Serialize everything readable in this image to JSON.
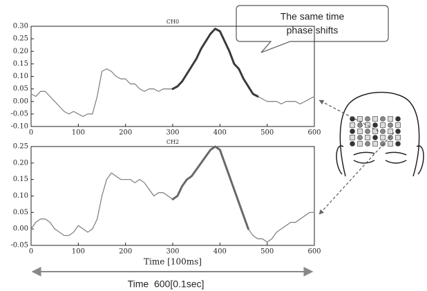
{
  "chart_data": [
    {
      "type": "line",
      "title": "CH0",
      "x": [
        0,
        10,
        20,
        30,
        40,
        50,
        60,
        70,
        80,
        90,
        100,
        110,
        120,
        130,
        140,
        150,
        160,
        170,
        180,
        190,
        200,
        210,
        220,
        230,
        240,
        250,
        260,
        270,
        280,
        290,
        300,
        310,
        320,
        330,
        340,
        350,
        360,
        370,
        380,
        390,
        400,
        410,
        420,
        430,
        440,
        450,
        460,
        470,
        480,
        490,
        500,
        510,
        520,
        530,
        540,
        550,
        560,
        570,
        580,
        590,
        600
      ],
      "series": [
        {
          "color": "#7a7a7a",
          "values": [
            0.03,
            0.02,
            0.04,
            0.04,
            0.02,
            0.0,
            -0.02,
            -0.04,
            -0.05,
            -0.04,
            -0.05,
            -0.06,
            -0.05,
            -0.05,
            0.02,
            0.12,
            0.13,
            0.12,
            0.1,
            0.09,
            0.09,
            0.07,
            0.07,
            0.05,
            0.04,
            0.05,
            0.05,
            0.04,
            0.05,
            0.05,
            0.05,
            0.06,
            0.08,
            0.11,
            0.14,
            0.17,
            0.21,
            0.24,
            0.27,
            0.29,
            0.28,
            0.24,
            0.2,
            0.15,
            0.13,
            0.09,
            0.06,
            0.03,
            0.02,
            0.01,
            0.0,
            0.0,
            0.0,
            -0.01,
            0.0,
            0.0,
            0.0,
            -0.01,
            0.0,
            0.01,
            0.02
          ]
        },
        {
          "color": "#3a3a3a",
          "values": [
            null,
            null,
            null,
            null,
            null,
            null,
            null,
            null,
            null,
            null,
            null,
            null,
            null,
            null,
            null,
            null,
            null,
            null,
            null,
            null,
            null,
            null,
            null,
            null,
            null,
            null,
            null,
            null,
            null,
            null,
            0.05,
            0.06,
            0.08,
            0.11,
            0.14,
            0.17,
            0.21,
            0.24,
            0.27,
            0.29,
            0.28,
            0.24,
            0.2,
            0.15,
            0.13,
            0.09,
            0.06,
            0.03,
            0.02,
            null,
            null,
            null,
            null,
            null,
            null,
            null,
            null,
            null,
            null,
            null,
            null
          ]
        }
      ],
      "xlim": [
        0,
        600
      ],
      "xticks": [
        0,
        100,
        200,
        300,
        400,
        500,
        600
      ],
      "ylim": [
        -0.1,
        0.3
      ],
      "yticks": [
        {
          "value": -0.1,
          "label": "-0.10"
        },
        -0.05,
        {
          "value": 0,
          "label": "0.00"
        },
        0.05,
        {
          "value": 0.1,
          "label": "0.10"
        },
        0.15,
        {
          "value": 0.2,
          "label": "0.20"
        },
        0.25,
        {
          "value": 0.3,
          "label": "0.30"
        }
      ]
    },
    {
      "type": "line",
      "title": "CH2",
      "xlabel": "Time [100ms]",
      "x": [
        0,
        10,
        20,
        30,
        40,
        50,
        60,
        70,
        80,
        90,
        100,
        110,
        120,
        130,
        140,
        150,
        160,
        170,
        180,
        190,
        200,
        210,
        220,
        230,
        240,
        250,
        260,
        270,
        280,
        290,
        300,
        310,
        320,
        330,
        340,
        350,
        360,
        370,
        380,
        390,
        400,
        410,
        420,
        430,
        440,
        450,
        460,
        470,
        480,
        490,
        500,
        510,
        520,
        530,
        540,
        550,
        560,
        570,
        580,
        590,
        600
      ],
      "series": [
        {
          "color": "#7a7a7a",
          "values": [
            0.0,
            0.02,
            0.03,
            0.03,
            0.02,
            0.0,
            -0.01,
            -0.02,
            -0.02,
            -0.01,
            0.01,
            0.0,
            -0.01,
            0.0,
            0.03,
            0.1,
            0.15,
            0.17,
            0.16,
            0.15,
            0.15,
            0.15,
            0.14,
            0.15,
            0.14,
            0.12,
            0.1,
            0.11,
            0.11,
            0.1,
            0.09,
            0.1,
            0.13,
            0.15,
            0.16,
            0.18,
            0.2,
            0.22,
            0.24,
            0.25,
            0.24,
            0.2,
            0.16,
            0.12,
            0.08,
            0.04,
            0.0,
            -0.02,
            -0.03,
            -0.03,
            -0.04,
            -0.03,
            -0.01,
            0.0,
            0.01,
            0.02,
            0.02,
            0.03,
            0.04,
            0.05,
            0.05
          ]
        },
        {
          "color": "#686868",
          "values": [
            null,
            null,
            null,
            null,
            null,
            null,
            null,
            null,
            null,
            null,
            null,
            null,
            null,
            null,
            null,
            null,
            null,
            null,
            null,
            null,
            null,
            null,
            null,
            null,
            null,
            null,
            null,
            null,
            null,
            null,
            0.09,
            0.1,
            0.13,
            0.15,
            0.16,
            0.18,
            0.2,
            0.22,
            0.24,
            0.25,
            0.24,
            0.2,
            0.16,
            0.12,
            0.08,
            0.04,
            0.0,
            null,
            null,
            null,
            null,
            null,
            null,
            null,
            null,
            null,
            null,
            null,
            null,
            null,
            null
          ]
        }
      ],
      "xlim": [
        0,
        600
      ],
      "xticks": [
        0,
        100,
        200,
        300,
        400,
        500,
        600
      ],
      "ylim": [
        -0.05,
        0.25
      ],
      "yticks": [
        -0.05,
        {
          "value": 0,
          "label": "0.00"
        },
        0.05,
        {
          "value": 0.1,
          "label": "0.10"
        },
        0.15,
        {
          "value": 0.2,
          "label": "0.20"
        },
        0.25
      ]
    }
  ],
  "annotations": {
    "callout": [
      "The same time",
      "phase shifts"
    ],
    "time_span": "Time  600[0.1sec]"
  }
}
